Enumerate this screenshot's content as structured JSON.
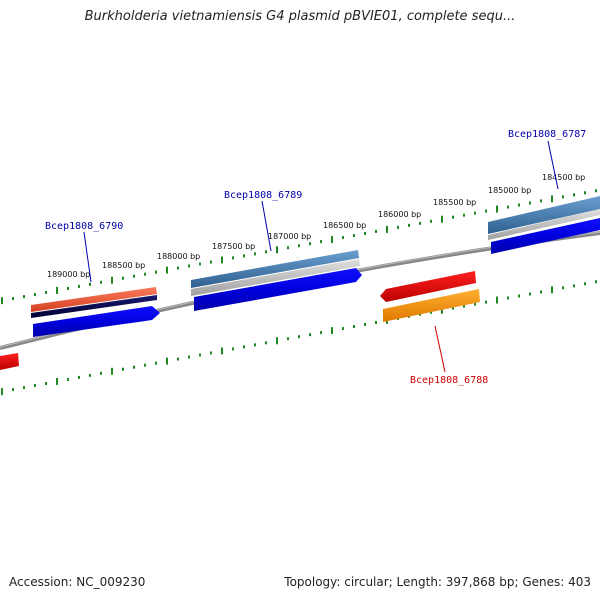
{
  "title": "Burkholderia vietnamiensis G4 plasmid pBVIE01, complete sequ...",
  "footer": {
    "accession": "Accession: NC_009230",
    "summary": "Topology: circular; Length: 397,868 bp; Genes: 403"
  },
  "ruler_labels": [
    "189000 bp",
    "188500 bp",
    "188000 bp",
    "187500 bp",
    "187000 bp",
    "186500 bp",
    "186000 bp",
    "185500 bp",
    "185000 bp",
    "184500 bp"
  ],
  "genes": [
    {
      "name": "Bcep1808_6790",
      "color": "#0000aa"
    },
    {
      "name": "Bcep1808_6789",
      "color": "#0000aa"
    },
    {
      "name": "Bcep1808_6788",
      "color": "#cc0000"
    },
    {
      "name": "Bcep1808_6787",
      "color": "#0000aa"
    }
  ],
  "colors": {
    "backbone": "#808080",
    "ticks": "#228822",
    "cds_forward": "#0000ee",
    "cds_reverse": "#ee0000",
    "gene_blue": "#4682b4",
    "gene_red": "#ff6347",
    "orange": "#ff9900"
  }
}
